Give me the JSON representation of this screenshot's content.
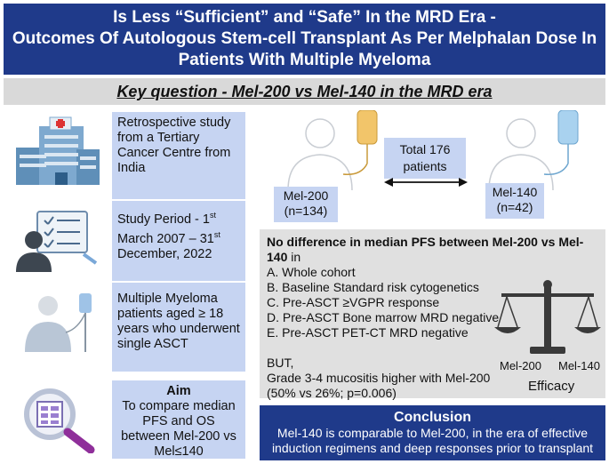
{
  "title": {
    "line1": "Is Less “Sufficient” and “Safe” In the MRD Era -",
    "line2": "Outcomes Of Autologous Stem-cell Transplant As Per Melphalan Dose In",
    "line3": "Patients With Multiple Myeloma"
  },
  "key_question": "Key question - Mel-200 vs Mel-140 in the MRD era",
  "left": {
    "study": "Retrospective study from a Tertiary Cancer Centre from India",
    "period_prefix": "Study Period - 1",
    "period_sup1": "st",
    "period_mid": " March 2007 – 31",
    "period_sup2": "st",
    "period_suffix": " December, 2022",
    "patients": "Multiple Myeloma patients aged ≥ 18 years who underwent single ASCT",
    "aim_title": "Aim",
    "aim_text": "To compare median PFS and OS between Mel-200 vs Mel≤140"
  },
  "cohort": {
    "total_line1": "Total 176",
    "total_line2": "patients",
    "mel200_line1": "Mel-200",
    "mel200_line2": "(n=134)",
    "mel140_line1": "Mel-140",
    "mel140_line2": "(n=42)"
  },
  "results": {
    "head_bold": "No difference in median PFS between Mel-200 vs Mel-140",
    "head_tail": " in",
    "items": [
      "A. Whole cohort",
      "B. Baseline Standard risk cytogenetics",
      "C. Pre-ASCT ≥VGPR response",
      "D. Pre-ASCT Bone marrow MRD negative",
      "E. Pre-ASCT PET-CT MRD negative"
    ],
    "but": "BUT,",
    "mucositis1": "Grade 3-4 mucositis higher with Mel-200",
    "mucositis2": "(50% vs 26%; p=0.006)"
  },
  "scale": {
    "left": "Mel-200",
    "right": "Mel-140",
    "caption": "Efficacy"
  },
  "conclusion": {
    "title": "Conclusion",
    "line1": "Mel-140 is comparable to Mel-200, in the era of effective",
    "line2": "induction regimens and deep responses prior to transplant"
  },
  "colors": {
    "navy": "#1f3a8a",
    "light_blue": "#c6d4f2",
    "gray": "#e0e0e0"
  }
}
